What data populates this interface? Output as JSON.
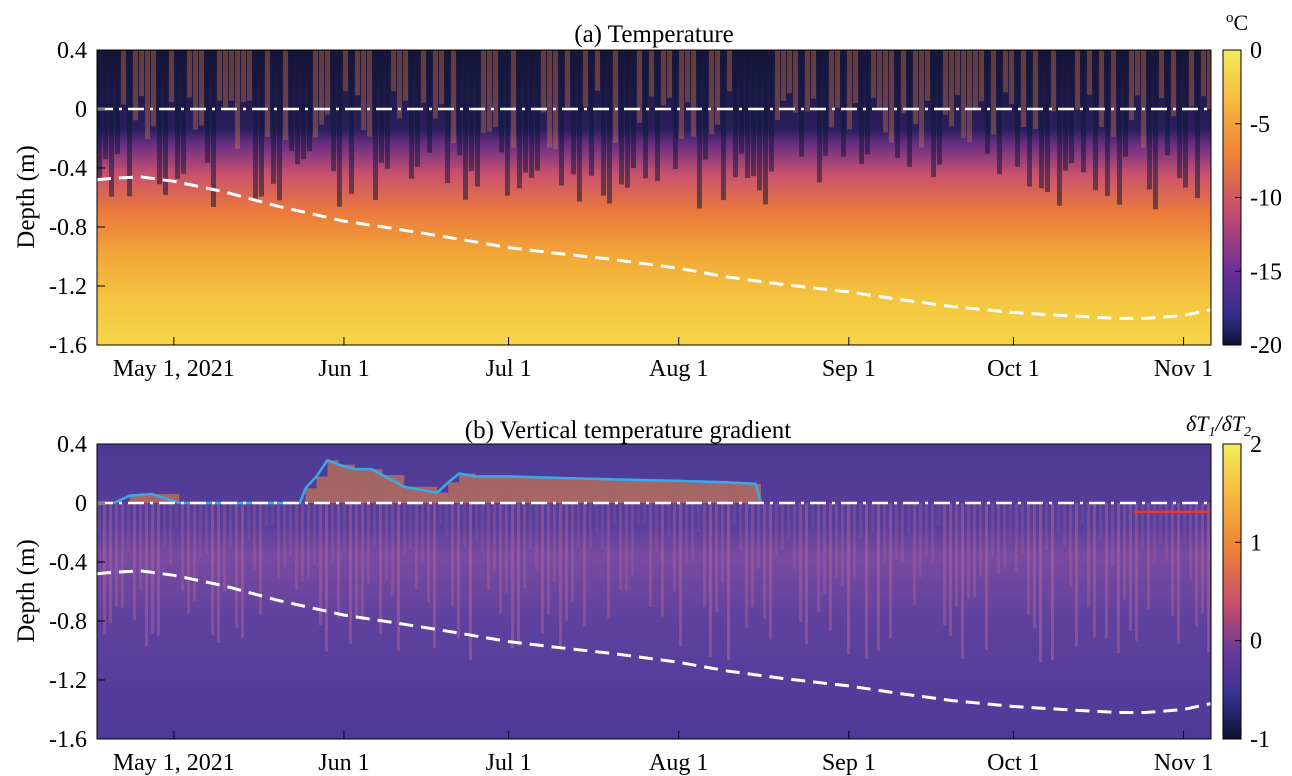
{
  "chart_data": [
    {
      "type": "heatmap",
      "title": "(a) Temperature",
      "ylabel": "Depth (m)",
      "ylim": [
        -1.6,
        0.4
      ],
      "yticks": [
        "0.4",
        "0",
        "-0.4",
        "-0.8",
        "-1.2",
        "-1.6"
      ],
      "ytick_values": [
        0.4,
        0,
        -0.4,
        -0.8,
        -1.2,
        -1.6
      ],
      "xticks": [
        "May 1, 2021",
        "Jun 1",
        "Jul 1",
        "Aug 1",
        "Sep 1",
        "Oct 1",
        "Nov 1"
      ],
      "xtick_dates": [
        "2021-05-01",
        "2021-06-01",
        "2021-07-01",
        "2021-08-01",
        "2021-09-01",
        "2021-10-01",
        "2021-11-01"
      ],
      "xlim": [
        "2021-04-17",
        "2021-11-06"
      ],
      "colorbar": {
        "label": "oC",
        "label_sup": "o",
        "label_main": "C",
        "ticks": [
          "0",
          "-5",
          "-10",
          "-15",
          "-20"
        ],
        "range": [
          -20,
          0
        ]
      },
      "reference_line_depth": 0,
      "active_layer_boundary": {
        "dates": [
          "2021-04-17",
          "2021-04-20",
          "2021-04-25",
          "2021-05-01",
          "2021-05-10",
          "2021-05-20",
          "2021-06-01",
          "2021-06-10",
          "2021-06-20",
          "2021-07-01",
          "2021-07-10",
          "2021-07-20",
          "2021-08-01",
          "2021-08-10",
          "2021-08-20",
          "2021-09-01",
          "2021-09-10",
          "2021-09-20",
          "2021-10-01",
          "2021-10-10",
          "2021-10-20",
          "2021-10-25",
          "2021-11-01",
          "2021-11-06"
        ],
        "depths": [
          -0.48,
          -0.47,
          -0.46,
          -0.49,
          -0.56,
          -0.66,
          -0.76,
          -0.81,
          -0.87,
          -0.94,
          -0.98,
          -1.02,
          -1.08,
          -1.14,
          -1.19,
          -1.24,
          -1.29,
          -1.34,
          -1.38,
          -1.4,
          -1.42,
          -1.42,
          -1.4,
          -1.36
        ]
      }
    },
    {
      "type": "heatmap",
      "title": "(b) Vertical temperature gradient",
      "ylabel": "Depth (m)",
      "ylim": [
        -1.6,
        0.4
      ],
      "yticks": [
        "0.4",
        "0",
        "-0.4",
        "-0.8",
        "-1.2",
        "-1.6"
      ],
      "ytick_values": [
        0.4,
        0,
        -0.4,
        -0.8,
        -1.2,
        -1.6
      ],
      "xticks": [
        "May 1, 2021",
        "Jun 1",
        "Jul 1",
        "Aug 1",
        "Sep 1",
        "Oct 1",
        "Nov 1"
      ],
      "xtick_dates": [
        "2021-05-01",
        "2021-06-01",
        "2021-07-01",
        "2021-08-01",
        "2021-09-01",
        "2021-10-01",
        "2021-11-01"
      ],
      "xlim": [
        "2021-04-17",
        "2021-11-06"
      ],
      "colorbar": {
        "label": "δT1/δT2",
        "label_pre": "δT",
        "label_sub1": "1",
        "label_mid": "/δT",
        "label_sub2": "2",
        "ticks": [
          "2",
          "1",
          "0",
          "-1"
        ],
        "range": [
          -1,
          2
        ]
      },
      "reference_line_depth": 0,
      "snow_outline": {
        "dates": [
          "2021-04-20",
          "2021-04-23",
          "2021-04-27",
          "2021-05-02",
          "2021-05-24",
          "2021-05-25",
          "2021-05-27",
          "2021-05-29",
          "2021-05-31",
          "2021-06-03",
          "2021-06-06",
          "2021-06-08",
          "2021-06-12",
          "2021-06-18",
          "2021-06-20",
          "2021-06-22",
          "2021-06-25",
          "2021-07-01",
          "2021-07-10",
          "2021-07-20",
          "2021-08-01",
          "2021-08-10",
          "2021-08-15",
          "2021-08-16"
        ],
        "depths": [
          0.0,
          0.05,
          0.06,
          0.0,
          0.0,
          0.1,
          0.18,
          0.29,
          0.26,
          0.23,
          0.23,
          0.19,
          0.11,
          0.07,
          0.14,
          0.2,
          0.18,
          0.18,
          0.17,
          0.16,
          0.15,
          0.14,
          0.13,
          0.0
        ]
      },
      "snow_outline_red": {
        "dates": [
          "2021-10-23",
          "2021-11-06"
        ],
        "depths": [
          -0.06,
          -0.06
        ]
      },
      "active_layer_boundary": {
        "dates": [
          "2021-04-17",
          "2021-04-20",
          "2021-04-25",
          "2021-05-01",
          "2021-05-10",
          "2021-05-20",
          "2021-06-01",
          "2021-06-10",
          "2021-06-20",
          "2021-07-01",
          "2021-07-10",
          "2021-07-20",
          "2021-08-01",
          "2021-08-10",
          "2021-08-20",
          "2021-09-01",
          "2021-09-10",
          "2021-09-20",
          "2021-10-01",
          "2021-10-10",
          "2021-10-20",
          "2021-10-25",
          "2021-11-01",
          "2021-11-06"
        ],
        "depths": [
          -0.48,
          -0.47,
          -0.46,
          -0.49,
          -0.56,
          -0.66,
          -0.76,
          -0.81,
          -0.87,
          -0.94,
          -0.98,
          -1.02,
          -1.08,
          -1.14,
          -1.19,
          -1.24,
          -1.29,
          -1.34,
          -1.38,
          -1.4,
          -1.42,
          -1.42,
          -1.4,
          -1.36
        ]
      }
    }
  ]
}
